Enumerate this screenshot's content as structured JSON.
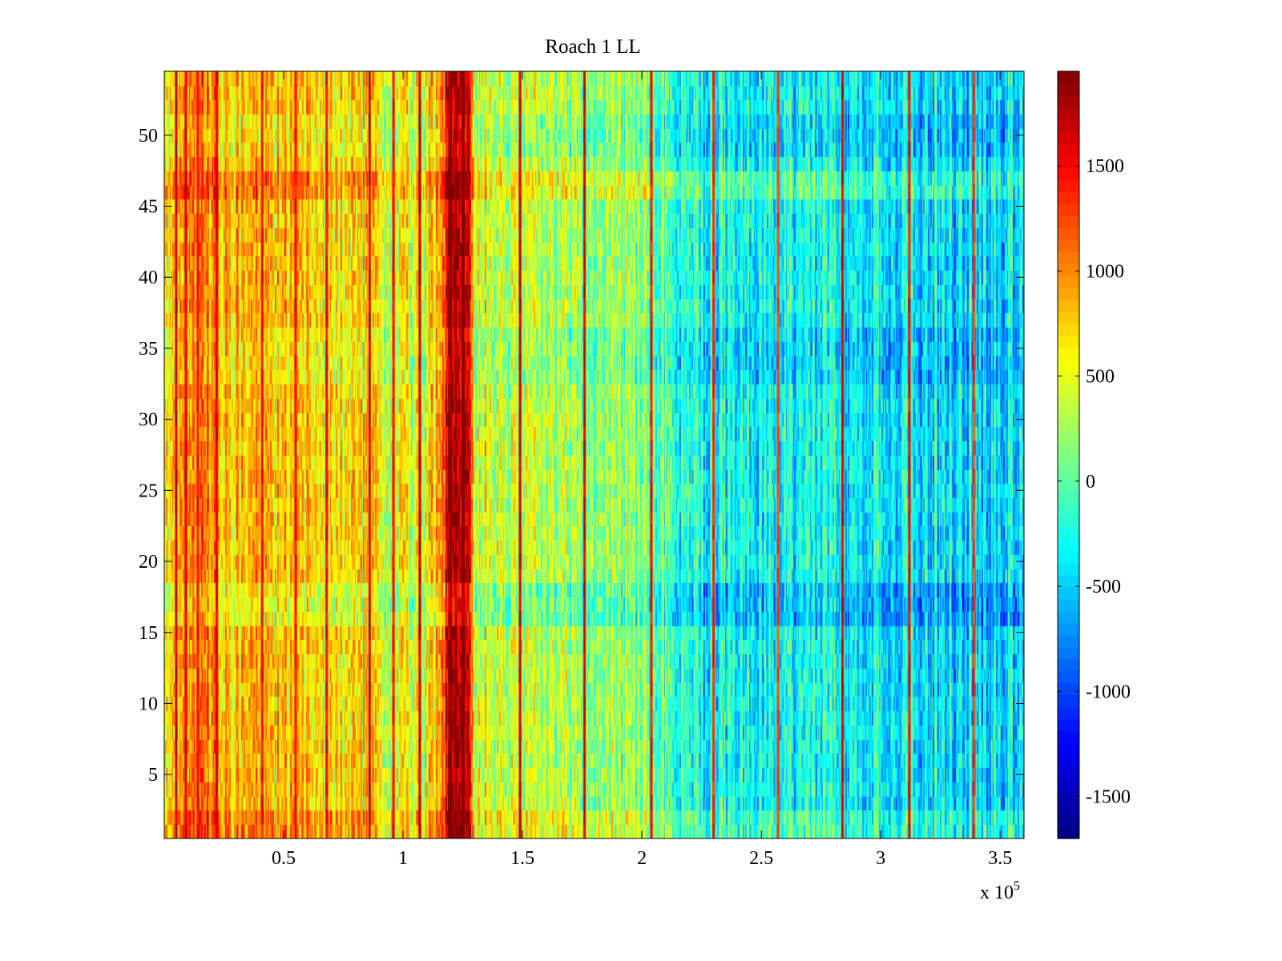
{
  "chart_data": {
    "type": "heatmap",
    "title": "Roach 1 LL",
    "xlabel": "",
    "ylabel": "",
    "x_exponent_label": "x 10",
    "x_exponent_power": "5",
    "x_range": [
      0,
      3.6
    ],
    "y_range": [
      0.5,
      54.5
    ],
    "n_rows": 54,
    "colormap": "jet",
    "color_range": [
      -1700,
      1950
    ],
    "x_ticks": [
      {
        "value": 0.5,
        "label": "0.5"
      },
      {
        "value": 1,
        "label": "1"
      },
      {
        "value": 1.5,
        "label": "1.5"
      },
      {
        "value": 2,
        "label": "2"
      },
      {
        "value": 2.5,
        "label": "2.5"
      },
      {
        "value": 3,
        "label": "3"
      },
      {
        "value": 3.5,
        "label": "3.5"
      }
    ],
    "y_ticks": [
      {
        "value": 5,
        "label": "5"
      },
      {
        "value": 10,
        "label": "10"
      },
      {
        "value": 15,
        "label": "15"
      },
      {
        "value": 20,
        "label": "20"
      },
      {
        "value": 25,
        "label": "25"
      },
      {
        "value": 30,
        "label": "30"
      },
      {
        "value": 35,
        "label": "35"
      },
      {
        "value": 40,
        "label": "40"
      },
      {
        "value": 45,
        "label": "45"
      },
      {
        "value": 50,
        "label": "50"
      }
    ],
    "colorbar_ticks": [
      {
        "value": 1500,
        "label": "1500"
      },
      {
        "value": 1000,
        "label": "1000"
      },
      {
        "value": 500,
        "label": "500"
      },
      {
        "value": 0,
        "label": "0"
      },
      {
        "value": -500,
        "label": "-500"
      },
      {
        "value": -1000,
        "label": "-1000"
      },
      {
        "value": -1500,
        "label": "-1500"
      }
    ],
    "column_profile": [
      {
        "x": 0.0,
        "value": 700
      },
      {
        "x": 0.1,
        "value": 1000
      },
      {
        "x": 0.3,
        "value": 800
      },
      {
        "x": 0.6,
        "value": 700
      },
      {
        "x": 0.85,
        "value": 650
      },
      {
        "x": 0.95,
        "value": 400
      },
      {
        "x": 1.1,
        "value": 600
      },
      {
        "x": 1.16,
        "value": 900
      },
      {
        "x": 1.19,
        "value": 1850
      },
      {
        "x": 1.27,
        "value": 1850
      },
      {
        "x": 1.3,
        "value": 500
      },
      {
        "x": 1.5,
        "value": 350
      },
      {
        "x": 1.8,
        "value": 250
      },
      {
        "x": 2.0,
        "value": 100
      },
      {
        "x": 2.2,
        "value": -250
      },
      {
        "x": 2.5,
        "value": -300
      },
      {
        "x": 2.8,
        "value": -250
      },
      {
        "x": 3.1,
        "value": -400
      },
      {
        "x": 3.4,
        "value": -450
      },
      {
        "x": 3.6,
        "value": -400
      }
    ],
    "row_offsets": [
      {
        "rows": [
          1,
          2
        ],
        "offset": 200
      },
      {
        "rows": [
          16,
          18
        ],
        "offset": -250
      },
      {
        "rows": [
          33,
          36
        ],
        "offset": -150
      },
      {
        "rows": [
          46,
          47
        ],
        "offset": 250
      },
      {
        "rows": [
          49,
          51
        ],
        "offset": -150
      }
    ],
    "vertical_streaks": [
      {
        "x": 0.05,
        "value": 1700
      },
      {
        "x": 0.09,
        "value": 1600
      },
      {
        "x": 0.14,
        "value": 1500
      },
      {
        "x": 0.22,
        "value": 1600
      },
      {
        "x": 0.41,
        "value": 1500
      },
      {
        "x": 0.55,
        "value": 1500
      },
      {
        "x": 0.68,
        "value": 1500
      },
      {
        "x": 0.86,
        "value": 1600
      },
      {
        "x": 0.96,
        "value": 1500
      },
      {
        "x": 1.07,
        "value": 1700
      },
      {
        "x": 1.49,
        "value": 1700
      },
      {
        "x": 1.76,
        "value": 1600
      },
      {
        "x": 2.04,
        "value": 1500
      },
      {
        "x": 2.3,
        "value": 1400
      },
      {
        "x": 2.57,
        "value": 1300
      },
      {
        "x": 2.84,
        "value": 1600
      },
      {
        "x": 3.12,
        "value": 1500
      },
      {
        "x": 3.39,
        "value": 1300
      }
    ]
  }
}
